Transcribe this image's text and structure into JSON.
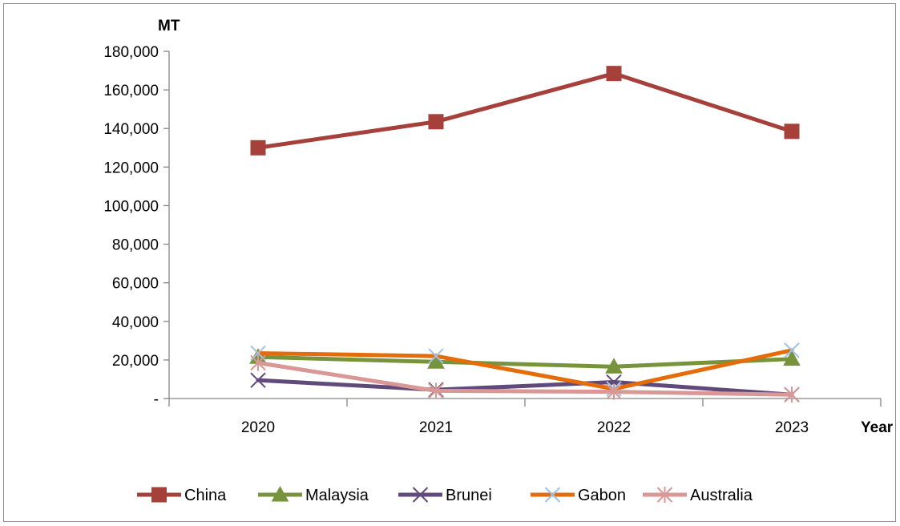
{
  "chart_data": {
    "type": "line",
    "ylabel": "MT",
    "xlabel": "Year",
    "categories": [
      "2020",
      "2021",
      "2022",
      "2023"
    ],
    "ylim": [
      0,
      180000
    ],
    "yticks": [
      0,
      20000,
      40000,
      60000,
      80000,
      100000,
      120000,
      140000,
      160000,
      180000
    ],
    "ytick_labels": [
      "-",
      "20,000",
      "40,000",
      "60,000",
      "80,000",
      "100,000",
      "120,000",
      "140,000",
      "160,000",
      "180,000"
    ],
    "grid": false,
    "legend_position": "bottom",
    "series": [
      {
        "name": "China",
        "values": [
          130000,
          143500,
          168500,
          138500
        ],
        "color": "#a5403a",
        "marker": "square"
      },
      {
        "name": "Malaysia",
        "values": [
          21500,
          19000,
          16500,
          20500
        ],
        "color": "#77933c",
        "marker": "triangle"
      },
      {
        "name": "Brunei",
        "values": [
          9500,
          4500,
          8500,
          2000
        ],
        "color": "#604a7b",
        "marker": "x"
      },
      {
        "name": "Gabon",
        "values": [
          23500,
          22000,
          5000,
          25000
        ],
        "color": "#e46c0a",
        "marker": "x-light"
      },
      {
        "name": "Australia",
        "values": [
          18500,
          4000,
          3500,
          2000
        ],
        "color": "#d99795",
        "marker": "star"
      }
    ]
  }
}
